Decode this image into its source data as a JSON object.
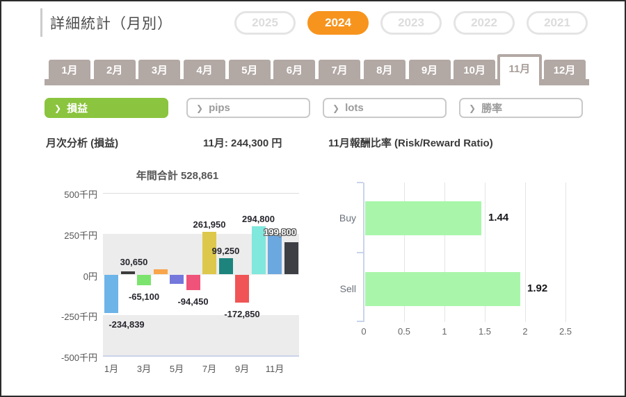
{
  "window": {
    "title": "詳細統計（月別）"
  },
  "year_selector": {
    "options": [
      "2025",
      "2024",
      "2023",
      "2022",
      "2021"
    ],
    "selected": "2024"
  },
  "month_tabs": {
    "options": [
      "1月",
      "2月",
      "3月",
      "4月",
      "5月",
      "6月",
      "7月",
      "8月",
      "9月",
      "10月",
      "11月",
      "12月"
    ],
    "selected": "11月"
  },
  "metric_filters": {
    "chevron_icon": "❯",
    "options": [
      {
        "label": "損益",
        "selected": true
      },
      {
        "label": "pips",
        "selected": false
      },
      {
        "label": "lots",
        "selected": false
      },
      {
        "label": "勝率",
        "selected": false
      }
    ]
  },
  "headers": {
    "monthly_analysis": "月次分析 (損益)",
    "selected_month_value": "11月:  244,300 円",
    "risk_reward_title": "11月報酬比率 (Risk/Reward Ratio)"
  },
  "chart_data": [
    {
      "type": "bar",
      "title": "年間合計 528,861",
      "categories": [
        "1月",
        "2月",
        "3月",
        "4月",
        "5月",
        "6月",
        "7月",
        "8月",
        "9月",
        "10月",
        "11月",
        "12月"
      ],
      "values": [
        -234839,
        21000,
        -65100,
        30650,
        -55650,
        -94450,
        261950,
        99250,
        -172850,
        294800,
        244300,
        199800
      ],
      "bar_labels": [
        "-234,839",
        "",
        "-65,100",
        "30,650",
        "",
        "-94,450",
        "261,950",
        "99,250",
        "-172,850",
        "294,800",
        "",
        "199,800"
      ],
      "bar_colors": [
        "#6db4e8",
        "#3b3b3b",
        "#7ce36e",
        "#f9a54b",
        "#7477dc",
        "#ef5379",
        "#ddc84b",
        "#1d847d",
        "#f05456",
        "#80e8dd",
        "#6ca8e0",
        "#3d3f45"
      ],
      "ylabel": "千円",
      "ylim": [
        -500000,
        500000
      ],
      "ytick_labels": [
        "500千円",
        "250千円",
        "0円",
        "-250千円",
        "-500千円"
      ],
      "xtick_labels": [
        "1月",
        "3月",
        "5月",
        "7月",
        "9月",
        "11月"
      ],
      "grid": "horizontal-bands",
      "legend": "none"
    },
    {
      "type": "horizontal-bar",
      "title": "11月報酬比率 (Risk/Reward Ratio)",
      "categories": [
        "Buy",
        "Sell"
      ],
      "values": [
        1.44,
        1.92
      ],
      "value_labels": [
        "1.44",
        "1.92"
      ],
      "bar_color": "#a9f6ab",
      "xlim": [
        0,
        2.5
      ],
      "xticks": [
        0,
        0.5,
        1,
        1.5,
        2,
        2.5
      ],
      "xtick_labels": [
        "0",
        "0.5",
        "1",
        "1.5",
        "2",
        "2.5"
      ],
      "grid": "vertical",
      "legend": "none"
    }
  ],
  "colors": {
    "accent_orange": "#f7941d",
    "accent_green": "#8bc43e",
    "tab_taupe": "#b2a8a4",
    "band_gray": "#ececec",
    "axis_blue": "#c9d3ea",
    "rr_bar_green": "#a9f6ab"
  }
}
